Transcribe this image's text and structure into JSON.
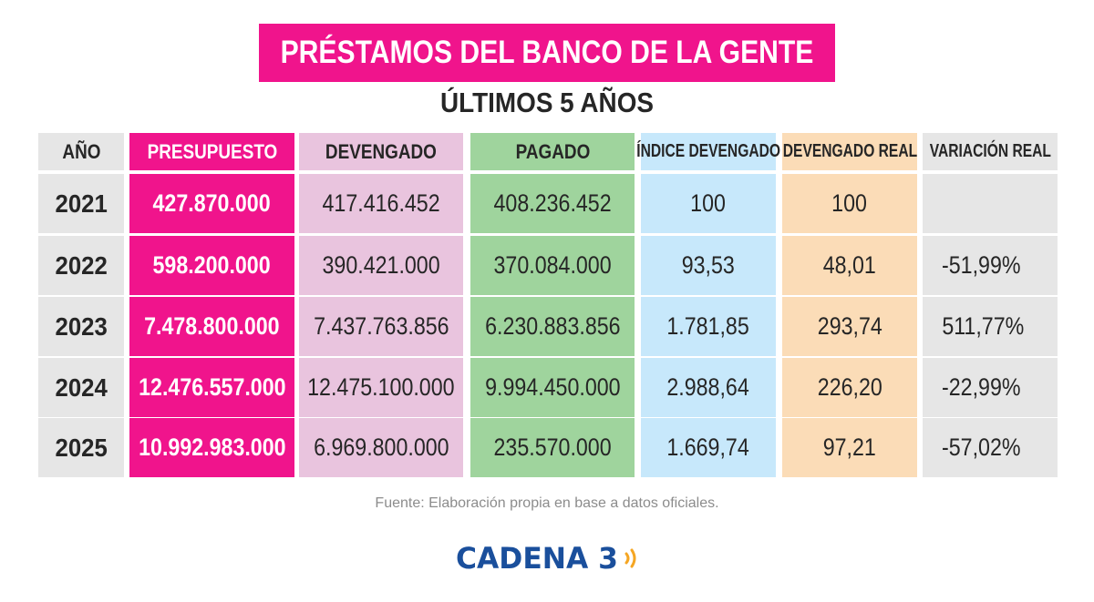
{
  "title": "PRÉSTAMOS DEL BANCO DE LA GENTE",
  "subtitle": "ÚLTIMOS 5 AÑOS",
  "source": "Fuente: Elaboración propia en base a datos oficiales.",
  "brand": "CADENA 3",
  "brand_icon": "sound-waves-icon",
  "colors": {
    "year": "#e6e6e6",
    "presupuesto": "#f0148c",
    "devengado": "#e9c4de",
    "pagado": "#9fd49d",
    "indice_devengado": "#c7e8fb",
    "devengado_real": "#fbdcb7",
    "variacion_real": "#e6e6e6",
    "brand_text": "#1a4f9c",
    "brand_waves": "#f5a623"
  },
  "chart_data": {
    "type": "table",
    "title": "PRÉSTAMOS DEL BANCO DE LA GENTE",
    "subtitle": "ÚLTIMOS 5 AÑOS",
    "columns": [
      "AÑO",
      "PRESUPUESTO",
      "DEVENGADO",
      "PAGADO",
      "ÍNDICE DEVENGADO",
      "DEVENGADO REAL",
      "VARIACIÓN REAL"
    ],
    "rows": [
      [
        "2021",
        "427.870.000",
        "417.416.452",
        "408.236.452",
        "100",
        "100",
        ""
      ],
      [
        "2022",
        "598.200.000",
        "390.421.000",
        "370.084.000",
        "93,53",
        "48,01",
        "-51,99%"
      ],
      [
        "2023",
        "7.478.800.000",
        "7.437.763.856",
        "6.230.883.856",
        "1.781,85",
        "293,74",
        "511,77%"
      ],
      [
        "2024",
        "12.476.557.000",
        "12.475.100.000",
        "9.994.450.000",
        "2.988,64",
        "226,20",
        "-22,99%"
      ],
      [
        "2025",
        "10.992.983.000",
        "6.969.800.000",
        "235.570.000",
        "1.669,74",
        "97,21",
        "-57,02%"
      ]
    ]
  }
}
